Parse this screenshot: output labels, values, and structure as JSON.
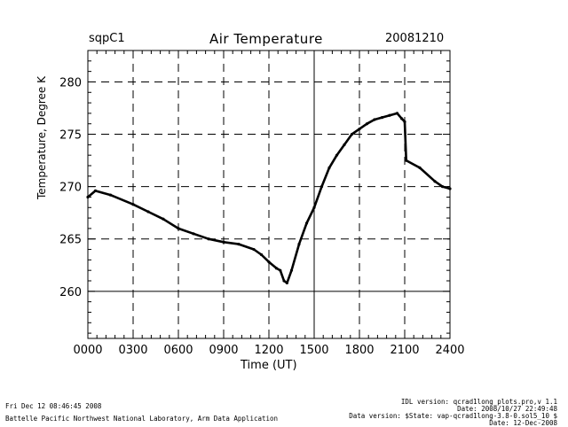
{
  "header": {
    "site": "sqpC1",
    "date": "20081210"
  },
  "footer": {
    "timestamp": "Fri Dec 12 08:46:45 2008",
    "organization": "Battelle Pacific Northwest National Laboratory, Arm Data Application",
    "idl_version": "IDL version: qcrad1long_plots.pro,v 1.1",
    "idl_date": "Date: 2008/10/27 22:49:48",
    "data_version": "Data version: $State: vap-qcrad1long-3.8-0.sol5_10 $",
    "data_date": "Date: 12-Dec-2008"
  },
  "chart_data": {
    "type": "line",
    "title": "Air Temperature",
    "xlabel": "Time (UT)",
    "ylabel": "Temperature, Degree K",
    "xlim": [
      0,
      2400
    ],
    "ylim": [
      255.5,
      283
    ],
    "xticks": [
      0,
      300,
      600,
      900,
      1200,
      1500,
      1800,
      2100,
      2400
    ],
    "xtick_labels": [
      "0000",
      "0300",
      "0600",
      "0900",
      "1200",
      "1500",
      "1800",
      "2100",
      "2400"
    ],
    "yticks": [
      260,
      265,
      270,
      275,
      280
    ],
    "ytick_labels": [
      "260",
      "265",
      "270",
      "275",
      "280"
    ],
    "grid": "dashed",
    "solid_reference_lines": {
      "x": 1500,
      "y": 260
    },
    "series": [
      {
        "x": [
          0,
          50,
          150,
          300,
          400,
          500,
          600,
          700,
          800,
          900,
          1000,
          1100,
          1150,
          1200,
          1250,
          1275,
          1300,
          1320,
          1350,
          1400,
          1450,
          1500,
          1550,
          1600,
          1650,
          1700,
          1750,
          1800,
          1850,
          1900,
          1950,
          2000,
          2050,
          2080,
          2100,
          2110,
          2200,
          2300,
          2350,
          2400
        ],
        "values": [
          269.0,
          269.6,
          269.2,
          268.3,
          267.6,
          266.9,
          266.0,
          265.5,
          265.0,
          264.7,
          264.5,
          264.0,
          263.5,
          262.8,
          262.2,
          262.0,
          261.0,
          260.8,
          262.0,
          264.5,
          266.5,
          268.0,
          270.0,
          271.8,
          273.0,
          274.0,
          275.0,
          275.5,
          276.0,
          276.4,
          276.6,
          276.8,
          277.0,
          276.5,
          276.2,
          272.5,
          271.8,
          270.5,
          270.0,
          269.8
        ]
      }
    ]
  }
}
